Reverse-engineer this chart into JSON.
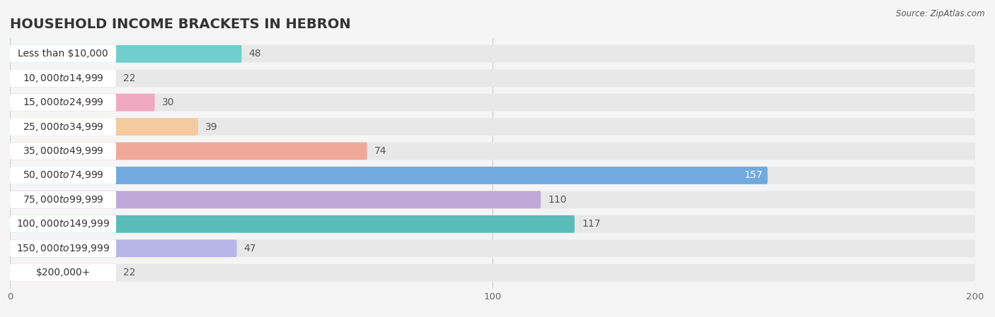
{
  "title": "HOUSEHOLD INCOME BRACKETS IN HEBRON",
  "source": "Source: ZipAtlas.com",
  "categories": [
    "Less than $10,000",
    "$10,000 to $14,999",
    "$15,000 to $24,999",
    "$25,000 to $34,999",
    "$35,000 to $49,999",
    "$50,000 to $74,999",
    "$75,000 to $99,999",
    "$100,000 to $149,999",
    "$150,000 to $199,999",
    "$200,000+"
  ],
  "values": [
    48,
    22,
    30,
    39,
    74,
    157,
    110,
    117,
    47,
    22
  ],
  "bar_colors": [
    "#70cece",
    "#b5b5e8",
    "#f0a8c0",
    "#f5ca9e",
    "#f0a898",
    "#70aadf",
    "#c0a8d8",
    "#5abcb8",
    "#b8b5e8",
    "#f5b8cc"
  ],
  "background_color": "#f5f5f5",
  "bar_background_color": "#e8e8e8",
  "label_bg_color": "#ffffff",
  "xlim": [
    0,
    200
  ],
  "xticks": [
    0,
    100,
    200
  ],
  "title_fontsize": 14,
  "label_fontsize": 10,
  "value_fontsize": 10,
  "source_fontsize": 8.5
}
